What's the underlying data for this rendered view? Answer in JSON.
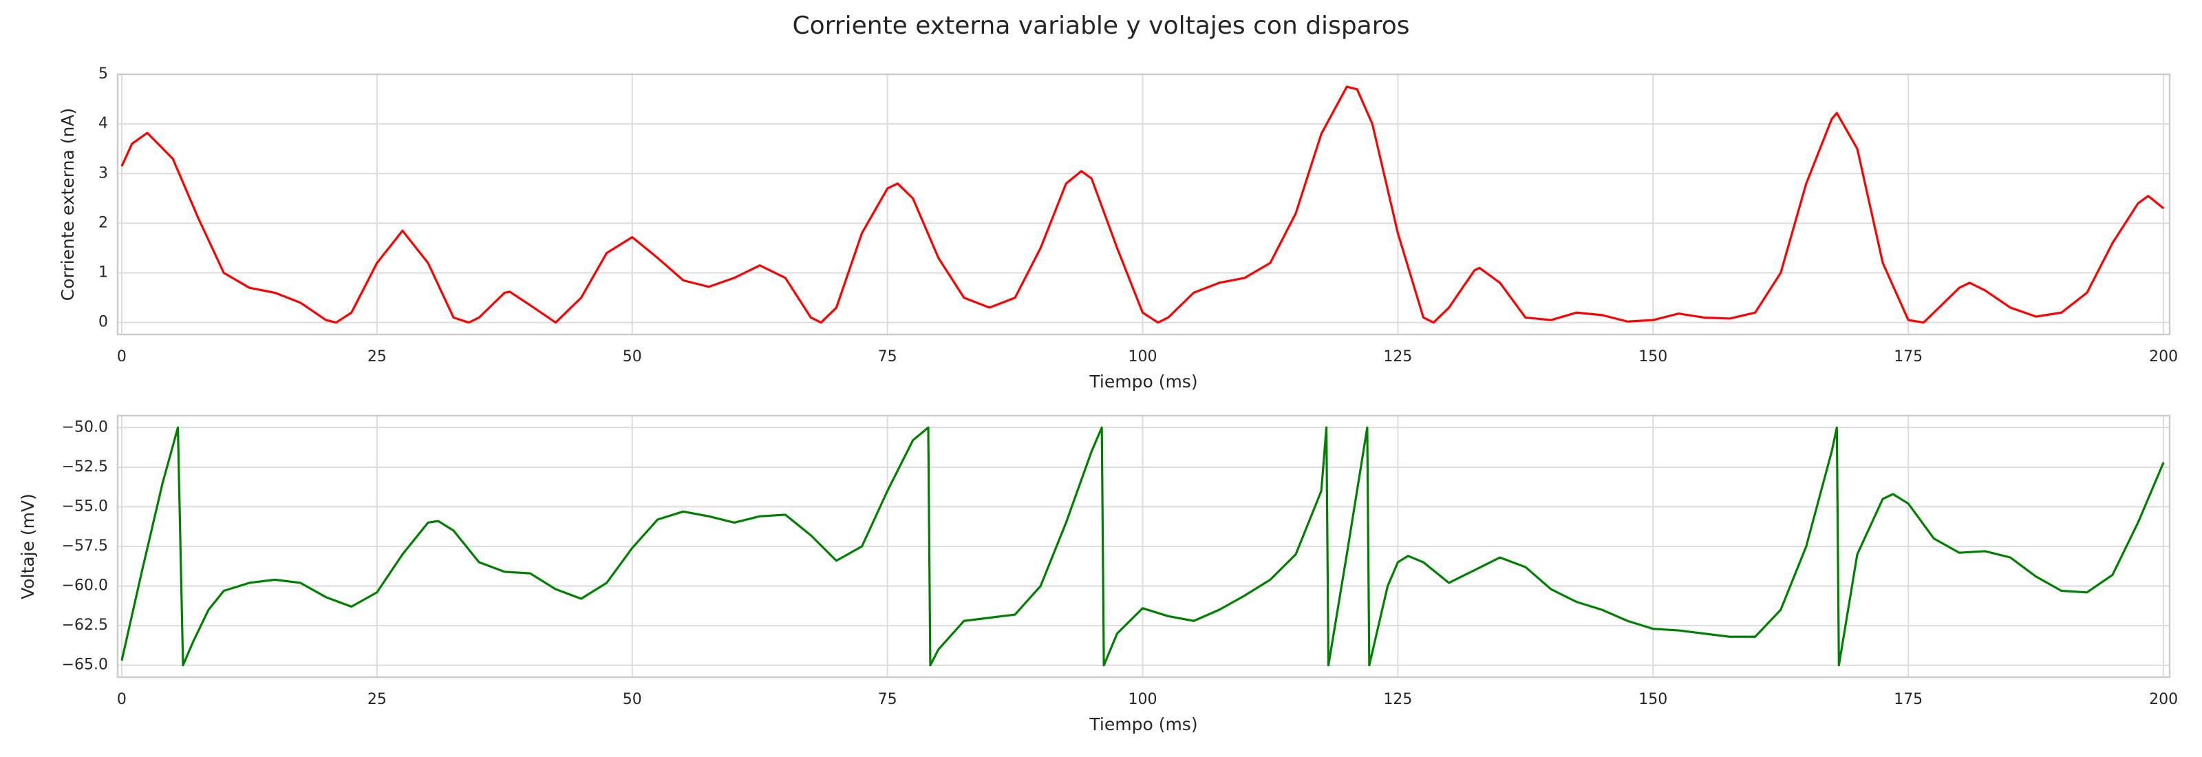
{
  "title": "Corriente externa variable y voltajes con disparos",
  "chart_data": [
    {
      "type": "line",
      "xlabel": "Tiempo (ms)",
      "ylabel": "Corriente externa (nA)",
      "xlim": [
        -0.4,
        200.6
      ],
      "ylim": [
        -0.24,
        5.0
      ],
      "xticks": [
        0,
        25,
        50,
        75,
        100,
        125,
        150,
        175,
        200
      ],
      "yticks": [
        0,
        1,
        2,
        3,
        4,
        5
      ],
      "grid": true,
      "series": [
        {
          "color": "#ff0000",
          "x": [
            0,
            1,
            2.5,
            5,
            7.5,
            10,
            12.5,
            15,
            17.5,
            20,
            21,
            22.5,
            25,
            27.5,
            30,
            32.5,
            34,
            35,
            37.5,
            38,
            40,
            42.5,
            45,
            47.5,
            50,
            52.5,
            55,
            57.5,
            60,
            62.5,
            65,
            67.5,
            68.5,
            70,
            72.5,
            75,
            76,
            77.5,
            80,
            82.5,
            85,
            87.5,
            90,
            92.5,
            94,
            95,
            97.5,
            100,
            101.5,
            102.5,
            105,
            107.5,
            110,
            112.5,
            115,
            117.5,
            120,
            121,
            122.5,
            125,
            127.5,
            128.5,
            130,
            132.5,
            133,
            135,
            137.5,
            140,
            142.5,
            145,
            147.5,
            150,
            152.5,
            155,
            157.5,
            160,
            162.5,
            165,
            167.5,
            168,
            170,
            172.5,
            175,
            176.5,
            177.5,
            180,
            181,
            182.5,
            185,
            187.5,
            190,
            192.5,
            195,
            197.5,
            198.5,
            200
          ],
          "values": [
            3.15,
            3.6,
            3.82,
            3.3,
            2.1,
            1.0,
            0.7,
            0.6,
            0.4,
            0.05,
            0.0,
            0.2,
            1.2,
            1.85,
            1.2,
            0.1,
            0.0,
            0.1,
            0.6,
            0.62,
            0.35,
            0.0,
            0.5,
            1.4,
            1.72,
            1.3,
            0.85,
            0.72,
            0.9,
            1.15,
            0.9,
            0.1,
            0.0,
            0.3,
            1.8,
            2.7,
            2.8,
            2.5,
            1.3,
            0.5,
            0.3,
            0.5,
            1.5,
            2.8,
            3.05,
            2.9,
            1.5,
            0.2,
            0.0,
            0.1,
            0.6,
            0.8,
            0.9,
            1.2,
            2.2,
            3.8,
            4.75,
            4.7,
            4.0,
            1.8,
            0.1,
            0.0,
            0.3,
            1.05,
            1.1,
            0.8,
            0.1,
            0.05,
            0.2,
            0.15,
            0.02,
            0.05,
            0.18,
            0.1,
            0.08,
            0.2,
            1.0,
            2.8,
            4.1,
            4.22,
            3.5,
            1.2,
            0.05,
            0.0,
            0.2,
            0.7,
            0.8,
            0.65,
            0.3,
            0.12,
            0.2,
            0.6,
            1.6,
            2.4,
            2.55,
            2.3
          ]
        }
      ]
    },
    {
      "type": "line",
      "xlabel": "Tiempo (ms)",
      "ylabel": "Voltaje (mV)",
      "xlim": [
        -0.4,
        200.6
      ],
      "ylim": [
        -65.75,
        -49.25
      ],
      "xticks": [
        0,
        25,
        50,
        75,
        100,
        125,
        150,
        175,
        200
      ],
      "yticks": [
        {
          "value": -50,
          "label": "−50.0"
        },
        {
          "value": -52.5,
          "label": "−52.5"
        },
        {
          "value": -55,
          "label": "−55.0"
        },
        {
          "value": -57.5,
          "label": "−57.5"
        },
        {
          "value": -60,
          "label": "−60.0"
        },
        {
          "value": -62.5,
          "label": "−62.5"
        },
        {
          "value": -65,
          "label": "−65.0"
        }
      ],
      "grid": true,
      "series": [
        {
          "color": "#008000",
          "x": [
            0,
            2,
            4,
            5.5,
            6,
            7,
            8.5,
            10,
            12.5,
            15,
            17.5,
            20,
            22.5,
            25,
            27.5,
            30,
            31,
            32.5,
            35,
            37.5,
            40,
            42.5,
            45,
            47.5,
            50,
            52.5,
            55,
            57.5,
            60,
            62.5,
            65,
            67.5,
            70,
            72.5,
            75,
            77.5,
            79,
            79.2,
            80,
            82.5,
            85,
            87.5,
            90,
            92.5,
            95,
            96,
            96.2,
            97.5,
            100,
            102.5,
            105,
            107.5,
            110,
            112.5,
            115,
            117.5,
            118,
            118.2,
            120,
            122,
            122.2,
            124,
            125,
            126,
            127.5,
            130,
            132.5,
            135,
            137.5,
            140,
            142.5,
            145,
            147.5,
            150,
            152.5,
            155,
            157.5,
            160,
            162.5,
            165,
            167.5,
            168,
            168.2,
            170,
            172.5,
            173.5,
            175,
            177.5,
            180,
            182.5,
            185,
            187.5,
            190,
            192.5,
            195,
            197.5,
            200
          ],
          "values": [
            -64.7,
            -59,
            -53.5,
            -50.0,
            -65,
            -63.5,
            -61.5,
            -60.3,
            -59.8,
            -59.6,
            -59.8,
            -60.7,
            -61.3,
            -60.4,
            -58,
            -56.0,
            -55.9,
            -56.5,
            -58.5,
            -59.1,
            -59.2,
            -60.2,
            -60.8,
            -59.8,
            -57.6,
            -55.8,
            -55.3,
            -55.6,
            -56.0,
            -55.6,
            -55.5,
            -56.8,
            -58.4,
            -57.5,
            -54,
            -50.8,
            -50.0,
            -65,
            -64,
            -62.2,
            -62.0,
            -61.8,
            -60,
            -56,
            -51.5,
            -50.0,
            -65,
            -63,
            -61.4,
            -61.9,
            -62.2,
            -61.5,
            -60.6,
            -59.6,
            -58,
            -54,
            -50.0,
            -65,
            -58,
            -50.0,
            -65,
            -60,
            -58.5,
            -58.1,
            -58.5,
            -59.8,
            -59,
            -58.2,
            -58.8,
            -60.2,
            -61,
            -61.5,
            -62.2,
            -62.7,
            -62.8,
            -63.0,
            -63.2,
            -63.2,
            -61.5,
            -57.5,
            -51.5,
            -50.0,
            -65,
            -58,
            -54.5,
            -54.2,
            -54.8,
            -57,
            -57.9,
            -57.8,
            -58.2,
            -59.4,
            -60.3,
            -60.4,
            -59.3,
            -56,
            -52.2
          ]
        }
      ]
    }
  ]
}
